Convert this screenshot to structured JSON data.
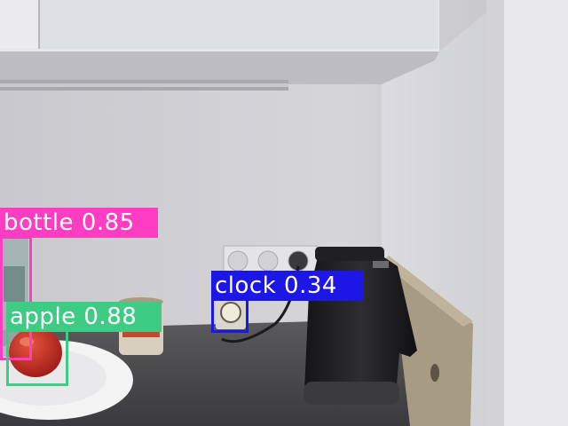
{
  "detections": [
    {
      "label": "bottle 0.85",
      "color": "#ff3dc2"
    },
    {
      "label": "apple 0.88",
      "color": "#3ecb84"
    },
    {
      "label": "clock 0.34",
      "color": "#1c16e6"
    }
  ]
}
